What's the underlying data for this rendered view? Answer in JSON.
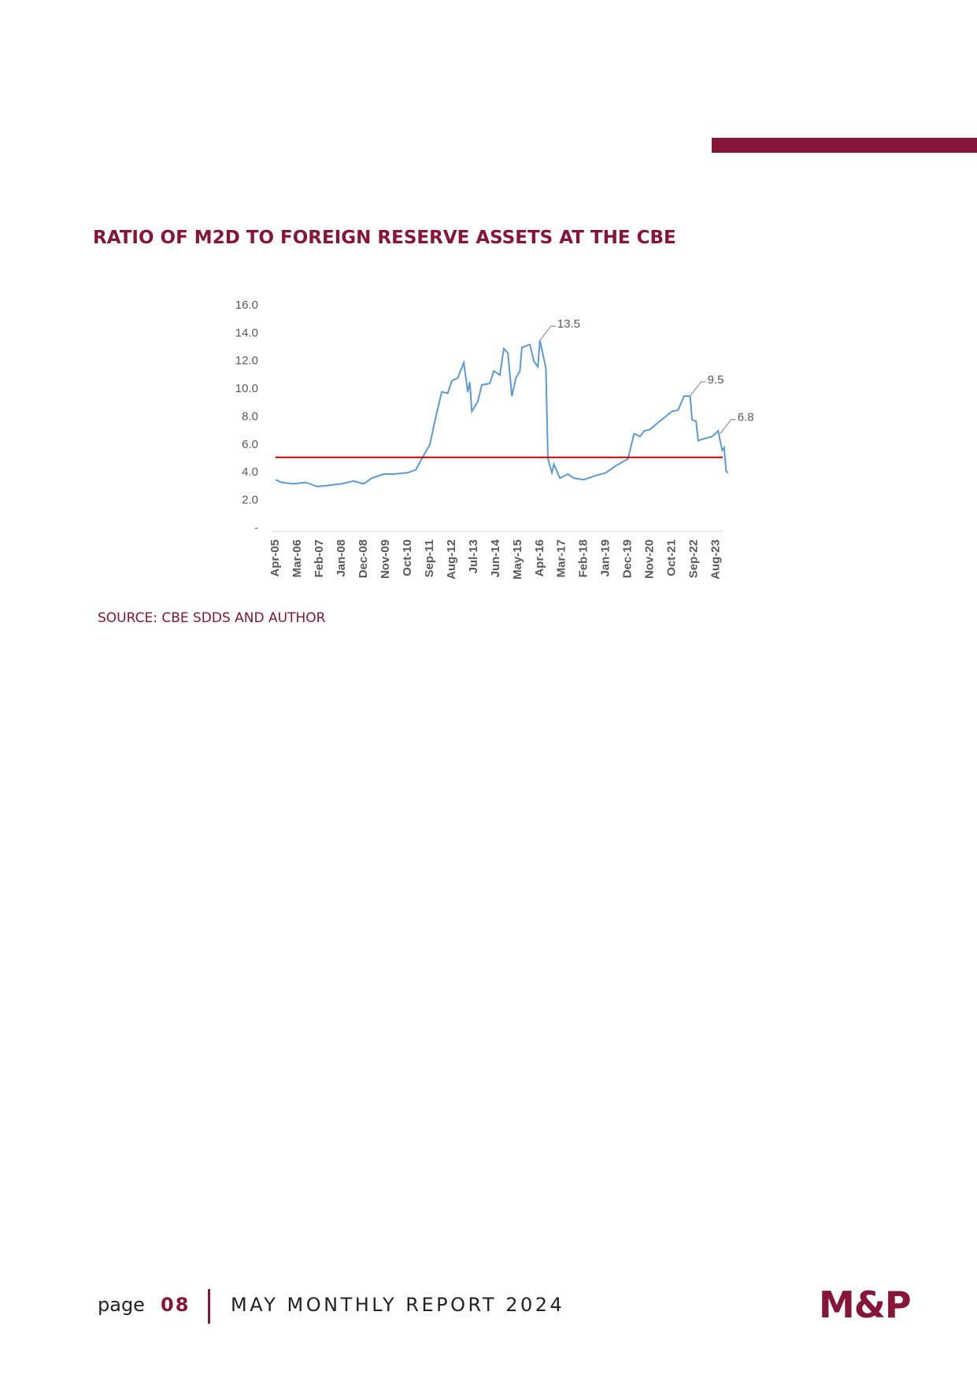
{
  "title": "RATIO OF M2D TO FOREIGN RESERVE ASSETS AT THE CBE",
  "chart_data": {
    "type": "line",
    "color": "#5b9bd5",
    "x": [
      "Apr-05",
      "Jul-05",
      "Jan-06",
      "Jul-06",
      "Jan-07",
      "Jul-07",
      "Jan-08",
      "Jul-08",
      "Dec-08",
      "Apr-09",
      "Oct-09",
      "Mar-10",
      "Oct-10",
      "Feb-11",
      "May-11",
      "Sep-11",
      "Dec-11",
      "Mar-12",
      "Jun-12",
      "Aug-12",
      "Nov-12",
      "Feb-13",
      "Apr-13",
      "May-13",
      "Jun-13",
      "Sep-13",
      "Nov-13",
      "Mar-14",
      "May-14",
      "Aug-14",
      "Oct-14",
      "Dec-14",
      "Feb-15",
      "Apr-15",
      "Jun-15",
      "Jul-15",
      "Nov-15",
      "Jan-16",
      "Mar-16",
      "Apr-16",
      "Jul-16",
      "Aug-16",
      "Oct-16",
      "Nov-16",
      "Feb-17",
      "Jun-17",
      "Sep-17",
      "Feb-18",
      "Aug-18",
      "Jan-19",
      "Jun-19",
      "Dec-19",
      "Mar-20",
      "Jun-20",
      "Aug-20",
      "Nov-20",
      "Mar-21",
      "Oct-21",
      "Jan-22",
      "Apr-22",
      "Jul-22",
      "Aug-22",
      "Oct-22",
      "Nov-22",
      "Jan-23",
      "Jun-23",
      "Sep-23",
      "Nov-23",
      "Dec-23",
      "Jan-24",
      "Feb-24"
    ],
    "values": [
      3.5,
      3.3,
      3.2,
      3.3,
      3.0,
      3.1,
      3.2,
      3.4,
      3.2,
      3.6,
      3.9,
      3.9,
      4.0,
      4.2,
      5.0,
      6.0,
      8.0,
      9.8,
      9.7,
      10.6,
      10.8,
      11.9,
      9.8,
      10.5,
      8.4,
      9.1,
      10.3,
      10.4,
      11.3,
      11.0,
      12.9,
      12.6,
      9.5,
      10.8,
      11.3,
      13.0,
      13.2,
      12.0,
      11.6,
      13.5,
      11.5,
      5.0,
      4.0,
      4.6,
      3.6,
      3.9,
      3.6,
      3.5,
      3.8,
      4.0,
      4.5,
      5.0,
      6.8,
      6.6,
      7.0,
      7.1,
      7.6,
      8.4,
      8.5,
      9.5,
      9.5,
      7.8,
      7.7,
      6.3,
      6.4,
      6.6,
      7.0,
      5.6,
      5.8,
      4.1,
      4.0
    ],
    "xlim": [
      "Apr-05",
      "Apr-24"
    ],
    "xticks": [
      "Apr-05",
      "Mar-06",
      "Feb-07",
      "Jan-08",
      "Dec-08",
      "Nov-09",
      "Oct-10",
      "Sep-11",
      "Aug-12",
      "Jul-13",
      "Jun-14",
      "May-15",
      "Apr-16",
      "Mar-17",
      "Feb-18",
      "Jan-19",
      "Dec-19",
      "Nov-20",
      "Oct-21",
      "Sep-22",
      "Aug-23"
    ],
    "ylim": [
      0,
      16
    ],
    "yticks": [
      {
        "value": 0,
        "label": "-"
      },
      {
        "value": 2,
        "label": "2.0"
      },
      {
        "value": 4,
        "label": "4.0"
      },
      {
        "value": 6,
        "label": "6.0"
      },
      {
        "value": 8,
        "label": "8.0"
      },
      {
        "value": 10,
        "label": "10.0"
      },
      {
        "value": 12,
        "label": "12.0"
      },
      {
        "value": 14,
        "label": "14.0"
      },
      {
        "value": 16,
        "label": "16.0"
      }
    ],
    "reference_line": {
      "value": 5.1,
      "color": "#c00000"
    },
    "annotations": [
      {
        "label": "13.5",
        "x": "Apr-16",
        "value": 13.5
      },
      {
        "label": "9.5",
        "x": "Jul-22",
        "value": 9.5
      },
      {
        "label": "6.8",
        "x": "Oct-23",
        "value": 6.8
      }
    ]
  },
  "source": "SOURCE: CBE SDDS AND AUTHOR",
  "footer": {
    "page_label": "page",
    "page_number": "08",
    "report": "MAY MONTHLY REPORT 2024",
    "logo": "M&P"
  }
}
